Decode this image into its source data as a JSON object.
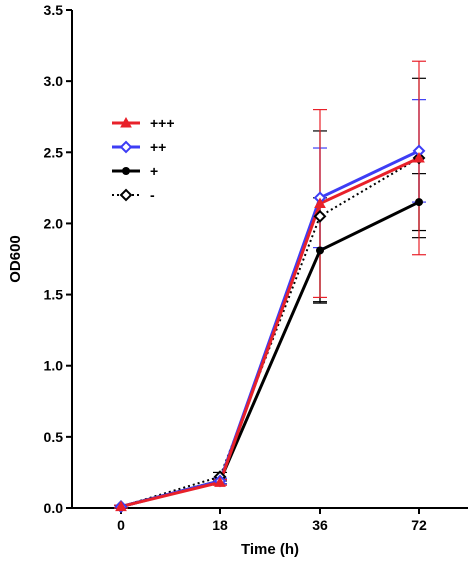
{
  "chart_data": {
    "type": "line",
    "xlabel": "Time (h)",
    "ylabel": "OD600",
    "categories": [
      "0",
      "18",
      "36",
      "72"
    ],
    "ylim": [
      0,
      3.5
    ],
    "yticks": [
      0.0,
      0.5,
      1.0,
      1.5,
      2.0,
      2.5,
      3.0,
      3.5
    ],
    "ytick_labels": [
      "0.0",
      "0.5",
      "1.0",
      "1.5",
      "2.0",
      "2.5",
      "3.0",
      "3.5"
    ],
    "grid": false,
    "legend_position": "upper-left",
    "series": [
      {
        "name": "+++",
        "color": "#e8212a",
        "line_style": "solid",
        "marker": "triangle",
        "values": [
          0.01,
          0.18,
          2.14,
          2.46
        ],
        "errors": [
          0.01,
          0.02,
          0.66,
          0.68
        ]
      },
      {
        "name": "++",
        "color": "#3d3df5",
        "line_style": "solid",
        "marker": "open-diamond",
        "values": [
          0.01,
          0.19,
          2.18,
          2.51
        ],
        "errors": [
          0.01,
          0.02,
          0.35,
          0.36
        ]
      },
      {
        "name": "+",
        "color": "#000000",
        "line_style": "solid",
        "marker": "filled-circle",
        "values": [
          0.01,
          0.19,
          1.81,
          2.15
        ],
        "errors": [
          0.01,
          0.02,
          0.37,
          0.2
        ]
      },
      {
        "name": "-",
        "color": "#000000",
        "line_style": "dotted",
        "marker": "open-diamond",
        "values": [
          0.01,
          0.22,
          2.05,
          2.46
        ],
        "errors": [
          0.01,
          0.03,
          0.6,
          0.56
        ]
      }
    ]
  }
}
